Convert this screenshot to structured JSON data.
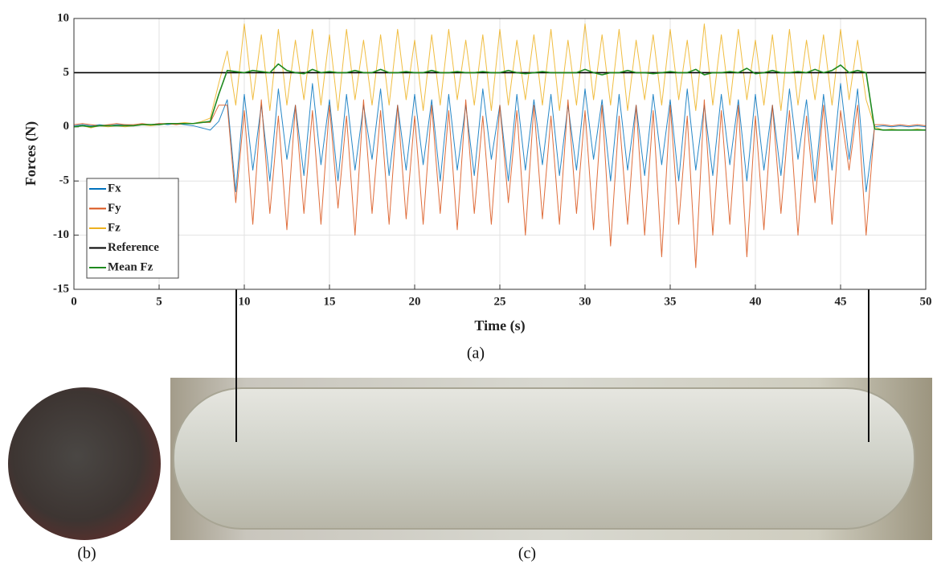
{
  "chart_data": {
    "type": "line",
    "xlabel": "Time (s)",
    "ylabel": "Forces (N)",
    "x": [
      0,
      0.5,
      1,
      1.5,
      2,
      2.5,
      3,
      3.5,
      4,
      4.5,
      5,
      5.5,
      6,
      6.5,
      7,
      7.5,
      8,
      8.5,
      9,
      9.5,
      10,
      10.5,
      11,
      11.5,
      12,
      12.5,
      13,
      13.5,
      14,
      14.5,
      15,
      15.5,
      16,
      16.5,
      17,
      17.5,
      18,
      18.5,
      19,
      19.5,
      20,
      20.5,
      21,
      21.5,
      22,
      22.5,
      23,
      23.5,
      24,
      24.5,
      25,
      25.5,
      26,
      26.5,
      27,
      27.5,
      28,
      28.5,
      29,
      29.5,
      30,
      30.5,
      31,
      31.5,
      32,
      32.5,
      33,
      33.5,
      34,
      34.5,
      35,
      35.5,
      36,
      36.5,
      37,
      37.5,
      38,
      38.5,
      39,
      39.5,
      40,
      40.5,
      41,
      41.5,
      42,
      42.5,
      43,
      43.5,
      44,
      44.5,
      45,
      45.5,
      46,
      46.5,
      47,
      47.5,
      48,
      48.5,
      49,
      49.5,
      50
    ],
    "series": [
      {
        "name": "Fx",
        "color": "#0072bd",
        "values": [
          0.1,
          0.2,
          0.1,
          0.2,
          0.1,
          0.2,
          0.2,
          0.1,
          0.2,
          0.2,
          0.3,
          0.2,
          0.3,
          0.2,
          0.1,
          -0.1,
          -0.3,
          0.5,
          2.5,
          -6,
          3,
          -4,
          2,
          -5,
          3.5,
          -3,
          2,
          -4.5,
          4,
          -3.5,
          2.5,
          -5,
          3,
          -4,
          2,
          -3,
          3.5,
          -4.5,
          2,
          -4,
          3,
          -3.5,
          2.5,
          -5,
          3,
          -4,
          2,
          -4.5,
          3.5,
          -3,
          2,
          -5,
          3,
          -4,
          2.5,
          -3.5,
          3,
          -4.5,
          2,
          -4,
          3.5,
          -3,
          2.5,
          -5,
          3,
          -4,
          2,
          -4.5,
          3,
          -3.5,
          2.5,
          -5,
          3.5,
          -4,
          2,
          -4.5,
          3,
          -3.5,
          2.5,
          -5,
          3,
          -4,
          2,
          -4.5,
          3.5,
          -3,
          2.5,
          -5,
          3,
          -4,
          4,
          -3,
          3.5,
          -6,
          0,
          0.1,
          0,
          0.1,
          0,
          0.1,
          0
        ]
      },
      {
        "name": "Fy",
        "color": "#d95319",
        "values": [
          0.2,
          0.3,
          0.2,
          0.1,
          0.2,
          0.3,
          0.2,
          0.2,
          0.3,
          0.2,
          0.3,
          0.3,
          0.2,
          0.3,
          0.3,
          0.4,
          0.4,
          2,
          2,
          -7,
          1.5,
          -9,
          2.5,
          -8,
          1,
          -9.5,
          2,
          -8,
          1.5,
          -9,
          2,
          -7.5,
          1,
          -10,
          2.5,
          -8,
          1.5,
          -9,
          2,
          -8.5,
          1,
          -9,
          2,
          -8,
          1.5,
          -9.5,
          2.5,
          -8,
          1,
          -9,
          2,
          -7,
          1.5,
          -10,
          2,
          -8.5,
          1,
          -9,
          2.5,
          -8,
          1.5,
          -9.5,
          2,
          -11,
          1,
          -9,
          2,
          -10,
          1.5,
          -12,
          2,
          -9,
          1,
          -13,
          2.5,
          -10,
          1.5,
          -9,
          2,
          -12,
          1,
          -9.5,
          2,
          -8,
          1.5,
          -10,
          1,
          -7,
          2,
          -9,
          1.5,
          -4,
          2,
          -10,
          0.2,
          0.2,
          0.1,
          0.2,
          0.1,
          0.2,
          0.1
        ]
      },
      {
        "name": "Fz",
        "color": "#edb120",
        "values": [
          0,
          0.1,
          -0.1,
          0.1,
          0,
          0.1,
          0,
          0.1,
          0.2,
          0.1,
          0.2,
          0.3,
          0.3,
          0.4,
          0.3,
          0.5,
          0.8,
          4,
          7,
          2,
          9.5,
          2.5,
          8.5,
          1.5,
          9,
          2,
          8,
          2.5,
          9,
          2,
          8.5,
          1.5,
          9,
          2.5,
          8,
          2,
          8.5,
          2,
          9,
          2.5,
          8,
          1.5,
          8.5,
          2,
          9,
          2.5,
          8,
          2,
          8.5,
          1.5,
          9,
          2,
          8,
          2.5,
          8.5,
          2,
          9,
          1.5,
          8,
          2,
          9.5,
          2.5,
          8.5,
          2,
          9,
          1.5,
          8,
          2.5,
          8.5,
          2,
          9,
          2.5,
          8,
          1.5,
          9.5,
          2,
          8.5,
          2,
          9,
          2.5,
          8,
          2,
          8.5,
          1.5,
          9,
          2,
          8,
          2.5,
          8.5,
          2,
          9,
          2.5,
          8,
          2.5,
          0,
          -0.3,
          -0.2,
          -0.3,
          -0.3,
          -0.2,
          -0.3
        ]
      },
      {
        "name": "Reference",
        "color": "#000000",
        "x": [
          0,
          50
        ],
        "values": [
          5,
          5
        ]
      },
      {
        "name": "Mean Fz",
        "color": "#1f8a1f",
        "values": [
          0,
          0.1,
          0,
          0.1,
          0.1,
          0.1,
          0.1,
          0.1,
          0.2,
          0.2,
          0.2,
          0.3,
          0.3,
          0.3,
          0.3,
          0.4,
          0.5,
          3,
          5.2,
          5.1,
          5,
          5.2,
          5.1,
          5,
          5.8,
          5.2,
          5,
          4.9,
          5.3,
          5,
          5.1,
          5,
          5,
          5.2,
          5,
          5,
          5.3,
          5,
          5,
          5.1,
          5,
          5,
          5.2,
          5,
          5,
          5.1,
          5,
          5,
          5.1,
          5,
          5,
          5.2,
          5,
          4.9,
          5,
          5.1,
          5,
          5,
          5,
          5,
          5.3,
          5,
          4.8,
          5,
          5,
          5.2,
          5,
          5,
          4.9,
          5,
          5.1,
          5,
          5,
          5.3,
          4.8,
          5,
          5,
          5.1,
          5,
          5.4,
          4.9,
          5,
          5.2,
          5,
          5,
          5.1,
          5,
          5.3,
          5,
          5.2,
          5.7,
          5,
          5.2,
          5,
          -0.2,
          -0.3,
          -0.3,
          -0.3,
          -0.3,
          -0.3,
          -0.3
        ]
      }
    ],
    "xlim": [
      0,
      50
    ],
    "xticks": [
      0,
      5,
      10,
      15,
      20,
      25,
      30,
      35,
      40,
      45,
      50
    ],
    "ylim": [
      -15,
      10
    ],
    "yticks": [
      -15,
      -10,
      -5,
      0,
      5,
      10
    ],
    "grid": true,
    "legend": "west"
  },
  "captions": [
    "(a)",
    "(b)",
    "(c)"
  ]
}
